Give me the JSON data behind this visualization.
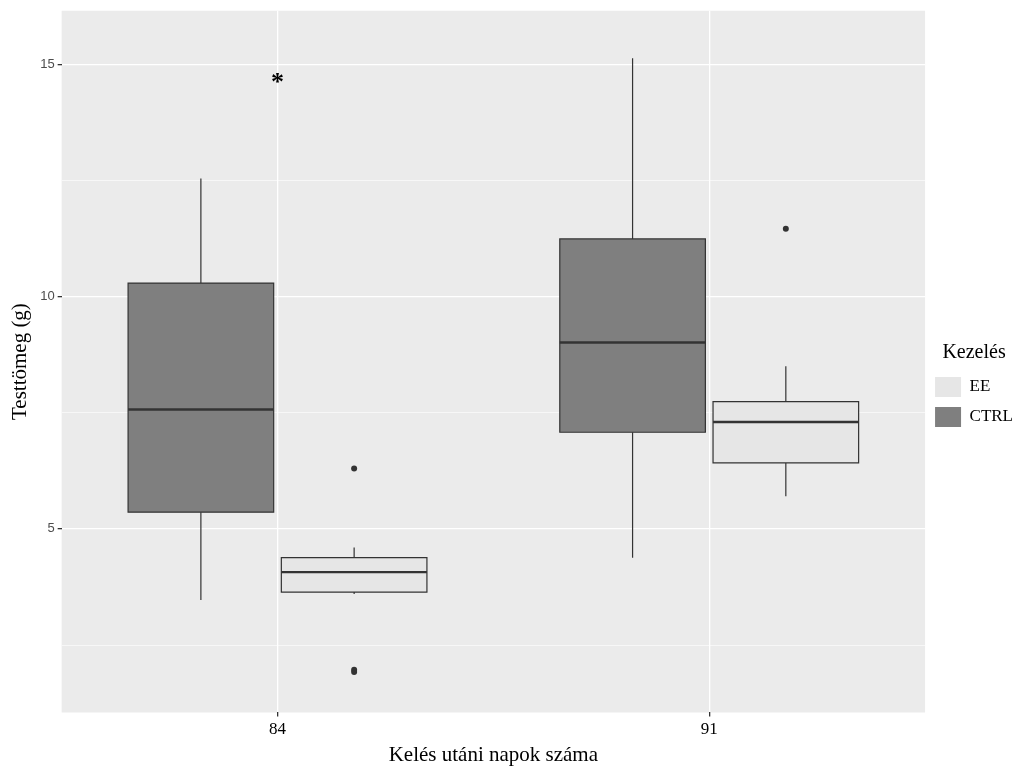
{
  "chart_data": {
    "type": "box",
    "xlabel": "Kelés utáni napok száma",
    "ylabel": "Testtömeg (g)",
    "legend_title": "Kezelés",
    "legend": "right",
    "grid": true,
    "categories": [
      "84",
      "91"
    ],
    "ylim": [
      1.05,
      16.15
    ],
    "yticks": [
      {
        "value": 2.5,
        "label": null
      },
      5,
      {
        "value": 7.5,
        "label": null
      },
      10,
      {
        "value": 12.5,
        "label": null
      },
      15
    ],
    "series": [
      {
        "name": "CTRL",
        "color": "#7f7f7f",
        "boxes": [
          {
            "low": 3.47,
            "q1": 5.36,
            "median": 7.57,
            "q3": 10.29,
            "high": 12.54
          },
          {
            "low": 4.38,
            "q1": 7.08,
            "median": 9.01,
            "q3": 11.24,
            "high": 15.13
          }
        ]
      },
      {
        "name": "EE",
        "color": "#e6e6e6",
        "boxes": [
          {
            "low": 3.6,
            "q1": 3.64,
            "median": 4.07,
            "q3": 4.38,
            "high": 4.6,
            "outliers": [
              6.3,
              1.97,
              1.92
            ]
          },
          {
            "low": 5.7,
            "q1": 6.42,
            "median": 7.3,
            "q3": 7.74,
            "high": 8.5,
            "outliers": [
              11.46
            ]
          }
        ]
      }
    ],
    "annotations": [
      "*"
    ]
  }
}
